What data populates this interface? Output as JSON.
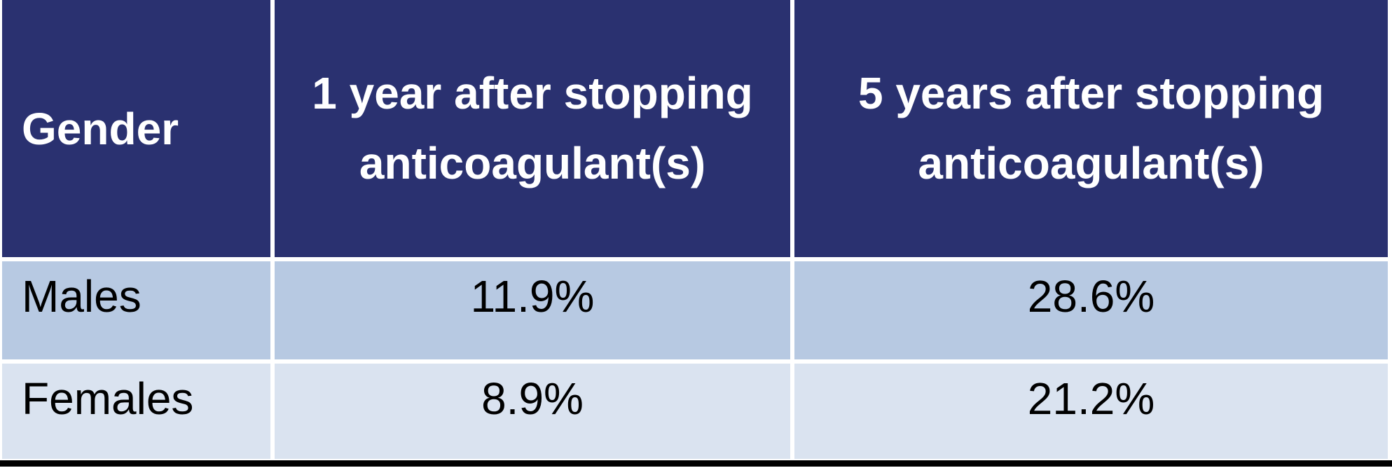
{
  "table": {
    "header": {
      "gender": "Gender",
      "one_year": "1 year after stopping anticoagulant(s)",
      "five_years": "5 years after stopping anticoagulant(s)"
    },
    "rows": [
      {
        "label": "Males",
        "one_year": "11.9%",
        "five_years": "28.6%"
      },
      {
        "label": "Females",
        "one_year": "8.9%",
        "five_years": "21.2%"
      }
    ]
  },
  "chart_data": {
    "type": "table",
    "columns": [
      "Gender",
      "1 year after stopping anticoagulant(s)",
      "5 years after stopping anticoagulant(s)"
    ],
    "rows": [
      [
        "Males",
        "11.9%",
        "28.6%"
      ],
      [
        "Females",
        "8.9%",
        "21.2%"
      ]
    ],
    "categories": [
      "Males",
      "Females"
    ],
    "series": [
      {
        "name": "1 year after stopping anticoagulant(s)",
        "values": [
          11.9,
          8.9
        ]
      },
      {
        "name": "5 years after stopping anticoagulant(s)",
        "values": [
          28.6,
          21.2
        ]
      }
    ],
    "unit": "percent"
  },
  "colors": {
    "header_background": "#2A3170",
    "header_text": "#FFFFFF",
    "row_males_background": "#B7C9E2",
    "row_females_background": "#DAE3F0",
    "body_text": "#000000",
    "grid_lines": "#FFFFFF",
    "bottom_rule": "#000000"
  }
}
